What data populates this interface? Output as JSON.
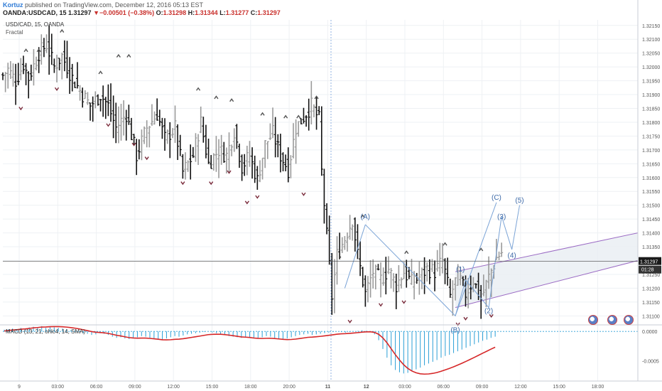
{
  "header": {
    "author": "Kortuz",
    "published": "published on TradingView.com, December 12, 2016 05:13 EST",
    "symbol_line": "OANDA:USDCAD, 15",
    "last": "1.31297",
    "change": "▼−0.00501 (−0.38%)",
    "o_label": "O:",
    "o": "1.31298",
    "h_label": "H:",
    "h": "1.31344",
    "l_label": "L:",
    "l": "1.31277",
    "c_label": "C:",
    "c": "1.31297"
  },
  "pane": {
    "symbol": "USD/CAD, 15, OANDA",
    "indicator": "Fractal",
    "macd_label": "MACD (13, 21, ohlc4, 14, SMA)"
  },
  "colors": {
    "bull": "#9a9a9a",
    "bear": "#111111",
    "wave": "#7aa3d6",
    "channel": "#9b6bc4",
    "channel_fill": "#e8edf3",
    "macd_line": "#d62728",
    "histogram": "#2a9fd6",
    "fractal_up": "#555555",
    "fractal_down": "#7a2b3b",
    "last_price_bg": "#1a1a1a"
  },
  "chart_data": {
    "type": "ohlc",
    "price_ylim": [
      1.3107,
      1.3217
    ],
    "price_ticks": [
      "1.32150",
      "1.32100",
      "1.32050",
      "1.32000",
      "1.31950",
      "1.31900",
      "1.31850",
      "1.31800",
      "1.31750",
      "1.31700",
      "1.31650",
      "1.31600",
      "1.31550",
      "1.31500",
      "1.31450",
      "1.31400",
      "1.31350",
      "1.31300",
      "1.31250",
      "1.31200",
      "1.31150",
      "1.31100"
    ],
    "last_price_label": "1.31297",
    "countdown_label": "01:28",
    "time_ticks": [
      "9",
      "03:00",
      "06:00",
      "09:00",
      "12:00",
      "15:00",
      "18:00",
      "20:00",
      "11",
      "12",
      "03:00",
      "06:00",
      "09:00",
      "12:00",
      "15:00",
      "18:00"
    ],
    "macd_ticks": [
      "0.0000",
      "-0.0005"
    ],
    "macd_ylim": [
      -0.00085,
      0.0001
    ],
    "close_path": [
      [
        0,
        1.3197
      ],
      [
        2,
        1.3199
      ],
      [
        5,
        1.3195
      ],
      [
        8,
        1.3201
      ],
      [
        10,
        1.3196
      ],
      [
        14,
        1.3205
      ],
      [
        17,
        1.3208
      ],
      [
        20,
        1.32
      ],
      [
        23,
        1.3204
      ],
      [
        27,
        1.3196
      ],
      [
        31,
        1.319
      ],
      [
        34,
        1.3186
      ],
      [
        38,
        1.319
      ],
      [
        41,
        1.3186
      ],
      [
        44,
        1.3178
      ],
      [
        48,
        1.3183
      ],
      [
        52,
        1.3168
      ],
      [
        56,
        1.3178
      ],
      [
        60,
        1.3183
      ],
      [
        63,
        1.3174
      ],
      [
        67,
        1.3178
      ],
      [
        70,
        1.3162
      ],
      [
        74,
        1.3168
      ],
      [
        77,
        1.318
      ],
      [
        80,
        1.3165
      ],
      [
        84,
        1.317
      ],
      [
        87,
        1.3168
      ],
      [
        90,
        1.3177
      ],
      [
        93,
        1.3164
      ],
      [
        96,
        1.3168
      ],
      [
        99,
        1.3159
      ],
      [
        102,
        1.3172
      ],
      [
        105,
        1.3176
      ],
      [
        108,
        1.3168
      ],
      [
        111,
        1.3163
      ],
      [
        114,
        1.3178
      ],
      [
        117,
        1.3182
      ],
      [
        120,
        1.3186
      ],
      [
        123,
        1.3181
      ],
      [
        124,
        1.3162
      ],
      [
        126,
        1.3139
      ],
      [
        128,
        1.3117
      ],
      [
        130,
        1.3132
      ],
      [
        133,
        1.3138
      ],
      [
        136,
        1.3145
      ],
      [
        138,
        1.3132
      ],
      [
        141,
        1.3118
      ],
      [
        144,
        1.3126
      ],
      [
        147,
        1.3123
      ],
      [
        150,
        1.3127
      ],
      [
        153,
        1.3121
      ],
      [
        156,
        1.3126
      ],
      [
        159,
        1.3122
      ],
      [
        162,
        1.3124
      ],
      [
        165,
        1.3127
      ],
      [
        168,
        1.3126
      ],
      [
        171,
        1.313
      ],
      [
        174,
        1.3117
      ],
      [
        177,
        1.3125
      ],
      [
        180,
        1.3118
      ],
      [
        183,
        1.3123
      ],
      [
        186,
        1.3116
      ],
      [
        189,
        1.3124
      ],
      [
        192,
        1.3131
      ],
      [
        194,
        1.3133
      ]
    ],
    "fractals_up": [
      [
        9,
        1.3206
      ],
      [
        14,
        1.3206
      ],
      [
        23,
        1.3213
      ],
      [
        38,
        1.3198
      ],
      [
        45,
        1.3204
      ],
      [
        49,
        1.3204
      ],
      [
        76,
        1.3192
      ],
      [
        83,
        1.3189
      ],
      [
        89,
        1.3188
      ],
      [
        101,
        1.3183
      ],
      [
        110,
        1.3182
      ],
      [
        115,
        1.3182
      ],
      [
        122,
        1.3189
      ],
      [
        140,
        1.3146
      ],
      [
        157,
        1.3133
      ],
      [
        172,
        1.3136
      ],
      [
        186,
        1.3134
      ]
    ],
    "fractals_down": [
      [
        7,
        1.3185
      ],
      [
        21,
        1.3192
      ],
      [
        41,
        1.3179
      ],
      [
        51,
        1.3172
      ],
      [
        56,
        1.3167
      ],
      [
        70,
        1.3158
      ],
      [
        81,
        1.3158
      ],
      [
        88,
        1.3162
      ],
      [
        95,
        1.3151
      ],
      [
        99,
        1.3153
      ],
      [
        117,
        1.3154
      ],
      [
        135,
        1.3108
      ],
      [
        147,
        1.3114
      ],
      [
        156,
        1.3115
      ],
      [
        177,
        1.3107
      ],
      [
        180,
        1.3109
      ],
      [
        190,
        1.311
      ]
    ],
    "wave_labels": [
      {
        "text": "(A)",
        "i": 141,
        "p": 1.3145
      },
      {
        "text": "(B)",
        "i": 176,
        "p": 1.3104
      },
      {
        "text": "(C)",
        "i": 192,
        "p": 1.3152
      },
      {
        "text": "(1)",
        "i": 178,
        "p": 1.3126
      },
      {
        "text": "(2)",
        "i": 189,
        "p": 1.3111
      },
      {
        "text": "(3)",
        "i": 194,
        "p": 1.3145
      },
      {
        "text": "(4)",
        "i": 198,
        "p": 1.3131
      },
      {
        "text": "(5)",
        "i": 201,
        "p": 1.3151
      }
    ],
    "wave_path_abc": [
      [
        141,
        1.3143
      ],
      [
        176,
        1.311
      ],
      [
        192,
        1.3151
      ]
    ],
    "wave_path_12345": [
      [
        176,
        1.311
      ],
      [
        180,
        1.3123
      ],
      [
        189,
        1.3113
      ],
      [
        194,
        1.3146
      ],
      [
        198,
        1.3134
      ],
      [
        201,
        1.315
      ]
    ],
    "wave_path_a_left": [
      [
        133,
        1.312
      ],
      [
        141,
        1.3143
      ]
    ],
    "channel": {
      "lower": [
        [
          176,
          1.3113
        ],
        [
          247,
          1.313
        ]
      ],
      "upper": [
        [
          176,
          1.3126
        ],
        [
          247,
          1.314
        ]
      ]
    },
    "macd_histogram": [
      3e-05,
      4e-05,
      5e-05,
      4e-05,
      6e-05,
      5e-05,
      7e-05,
      8e-05,
      7e-05,
      9e-05,
      6e-05,
      8e-05,
      7e-05,
      6e-05,
      5e-05,
      4e-05,
      2e-05,
      1e-05,
      -1e-05,
      -3e-05,
      -4e-05,
      -6e-05,
      -5e-05,
      -3e-05,
      -4e-05,
      -6e-05,
      -9e-05,
      -0.00011,
      -0.0001,
      -0.00012,
      -0.00013,
      -0.00011,
      -0.0001,
      -8e-05,
      -9e-05,
      -0.00011,
      -0.00012,
      -0.00013,
      -0.00014,
      -0.00012,
      -0.0001,
      -8e-05,
      -9e-05,
      -7e-05,
      -5e-05,
      -4e-05,
      -3e-05,
      -2e-05,
      -1e-05,
      0.0,
      -2e-05,
      -3e-05,
      -4e-05,
      -6e-05,
      -8e-05,
      -9e-05,
      -0.0001,
      -0.00011,
      -9e-05,
      -0.0001,
      -0.00012,
      -0.00011,
      -0.0001,
      -8e-05,
      -9e-05,
      -0.00011,
      -0.00012,
      -0.00013,
      -0.00012,
      -0.0001,
      -8e-05,
      -6e-05,
      -5e-05,
      -4e-05,
      -6e-05,
      -5e-05,
      -4e-05,
      -3e-05,
      -2e-05,
      -1e-05,
      0.0,
      -1e-05,
      -2e-05,
      -1e-05,
      0.0,
      1e-05,
      2e-05,
      1e-05,
      0.0,
      -5e-05,
      -0.00015,
      -0.0003,
      -0.00045,
      -0.00058,
      -0.00066,
      -0.0007,
      -0.00072,
      -0.00071,
      -0.00068,
      -0.00065,
      -0.00062,
      -0.00058,
      -0.00055,
      -0.00052,
      -0.00049,
      -0.00045,
      -0.00042,
      -0.0004,
      -0.00037,
      -0.00034,
      -0.00031,
      -0.00028,
      -0.00025,
      -0.00022,
      -0.00019,
      -0.00016,
      -0.00014,
      -0.00011,
      -9e-05
    ]
  }
}
